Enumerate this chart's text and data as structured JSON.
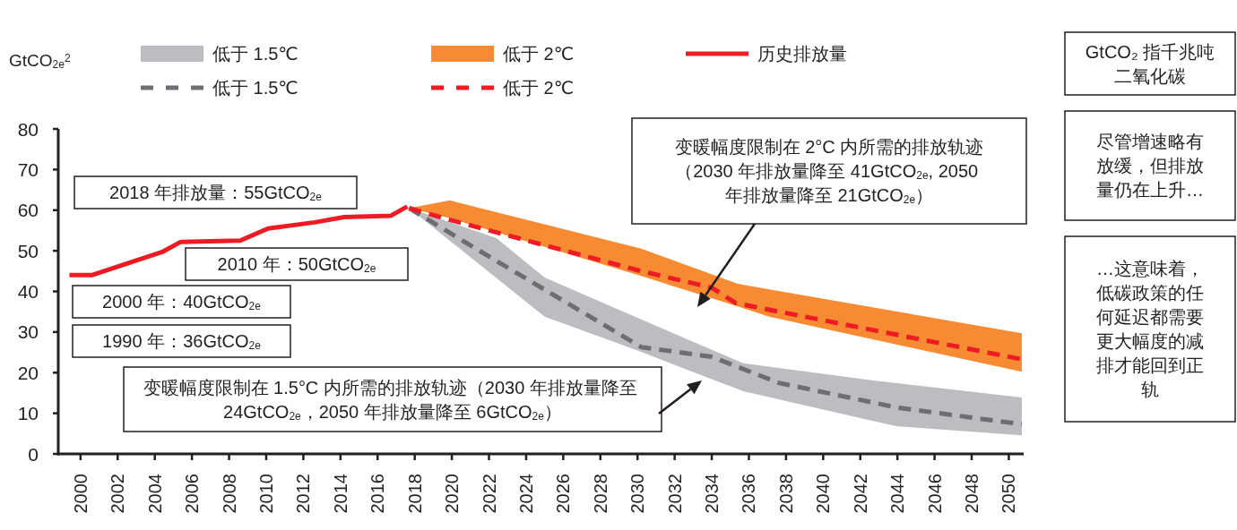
{
  "chart_data": {
    "type": "line",
    "ylabel": "GtCO$_{2e}$$^{2}$",
    "xlim": [
      1998.8,
      2050.8
    ],
    "ylim": [
      0,
      80
    ],
    "xticks": [
      2000,
      2002,
      2004,
      2006,
      2008,
      2010,
      2012,
      2014,
      2016,
      2018,
      2020,
      2022,
      2024,
      2026,
      2028,
      2030,
      2032,
      2034,
      2036,
      2038,
      2040,
      2042,
      2044,
      2046,
      2048,
      2050
    ],
    "yticks": [
      0,
      10,
      20,
      30,
      40,
      50,
      60,
      70,
      80
    ],
    "grid": false,
    "legend": "top",
    "series": [
      {
        "name": "低于 1.5℃",
        "type": "area",
        "color": "#bcbdc0",
        "x": [
          2017.7,
          2022.4,
          2025.0,
          2030.2,
          2035.7,
          2042.8,
          2044.0,
          2050.7
        ],
        "values": [
          null,
          null,
          null,
          null,
          null,
          null,
          null,
          null
        ],
        "upper": [
          60.5,
          53.1,
          43.4,
          33.1,
          22.3,
          18.0,
          17.4,
          13.9
        ],
        "lower": [
          60.5,
          43.3,
          33.8,
          25.1,
          15.4,
          8.0,
          6.8,
          4.6
        ]
      },
      {
        "name": "低于 1.5℃",
        "type": "line",
        "line_style": "dashed",
        "color": "#6d6e71",
        "x": [
          2017.7,
          2021.3,
          2030.2,
          2034.0,
          2037.6,
          2044.0,
          2050.7
        ],
        "values": [
          60.5,
          50.5,
          26.3,
          23.9,
          17.5,
          11.4,
          7.3
        ]
      },
      {
        "name": "低于 2℃",
        "type": "area",
        "color": "#f68b33",
        "x": [
          2017.7,
          2019.9,
          2030.2,
          2035.4,
          2037.1,
          2050.7
        ],
        "values": [
          null,
          null,
          null,
          null,
          null,
          null
        ],
        "upper": [
          60.5,
          62.4,
          50.5,
          41.9,
          40.5,
          29.7
        ],
        "lower": [
          60.5,
          58.0,
          43.8,
          36.3,
          33.8,
          20.2
        ]
      },
      {
        "name": "低于 2℃",
        "type": "line",
        "line_style": "dashed",
        "color": "#ed1c24",
        "x": [
          2017.7,
          2019.9,
          2030.2,
          2034.0,
          2035.3,
          2050.7
        ],
        "values": [
          60.5,
          57.6,
          45.0,
          40.9,
          37.1,
          23.3
        ]
      },
      {
        "name": "历史排放量",
        "type": "line",
        "line_style": "solid",
        "color": "#ed1c24",
        "x": [
          1999.4,
          2000.6,
          2004.4,
          2005.4,
          2008.6,
          2010.1,
          2012.6,
          2014.2,
          2016.7,
          2017.6
        ],
        "values": [
          44.0,
          44.0,
          49.7,
          52.2,
          52.5,
          55.5,
          57.0,
          58.3,
          58.6,
          60.9
        ]
      }
    ],
    "annotations": [
      "2018 年排放量：55GtCO$_{2e}$",
      "2010 年：50GtCO$_{2e}$",
      "2000 年：40GtCO$_{2e}$",
      "1990 年：36GtCO$_{2e}$",
      "变暖幅度限制在 1.5°C 内所需的排放轨迹（2030 年排放量降至 24GtCO$_{2e}$，2050 年排放量降至 6GtCO$_{2e}$）",
      "变暖幅度限制在 2°C 内所需的排放轨迹（2030 年排放量降至 41GtCO$_{2e}$, 2050 年排放量降至 21GtCO$_{2e}$）",
      "GtCO₂ 指千兆吨二氧化碳",
      "尽管增速略有放缓，但排放量仍在上升…",
      "…这意味着，低碳政策的任何延迟都需要更大幅度的减排才能回到正轨"
    ]
  }
}
